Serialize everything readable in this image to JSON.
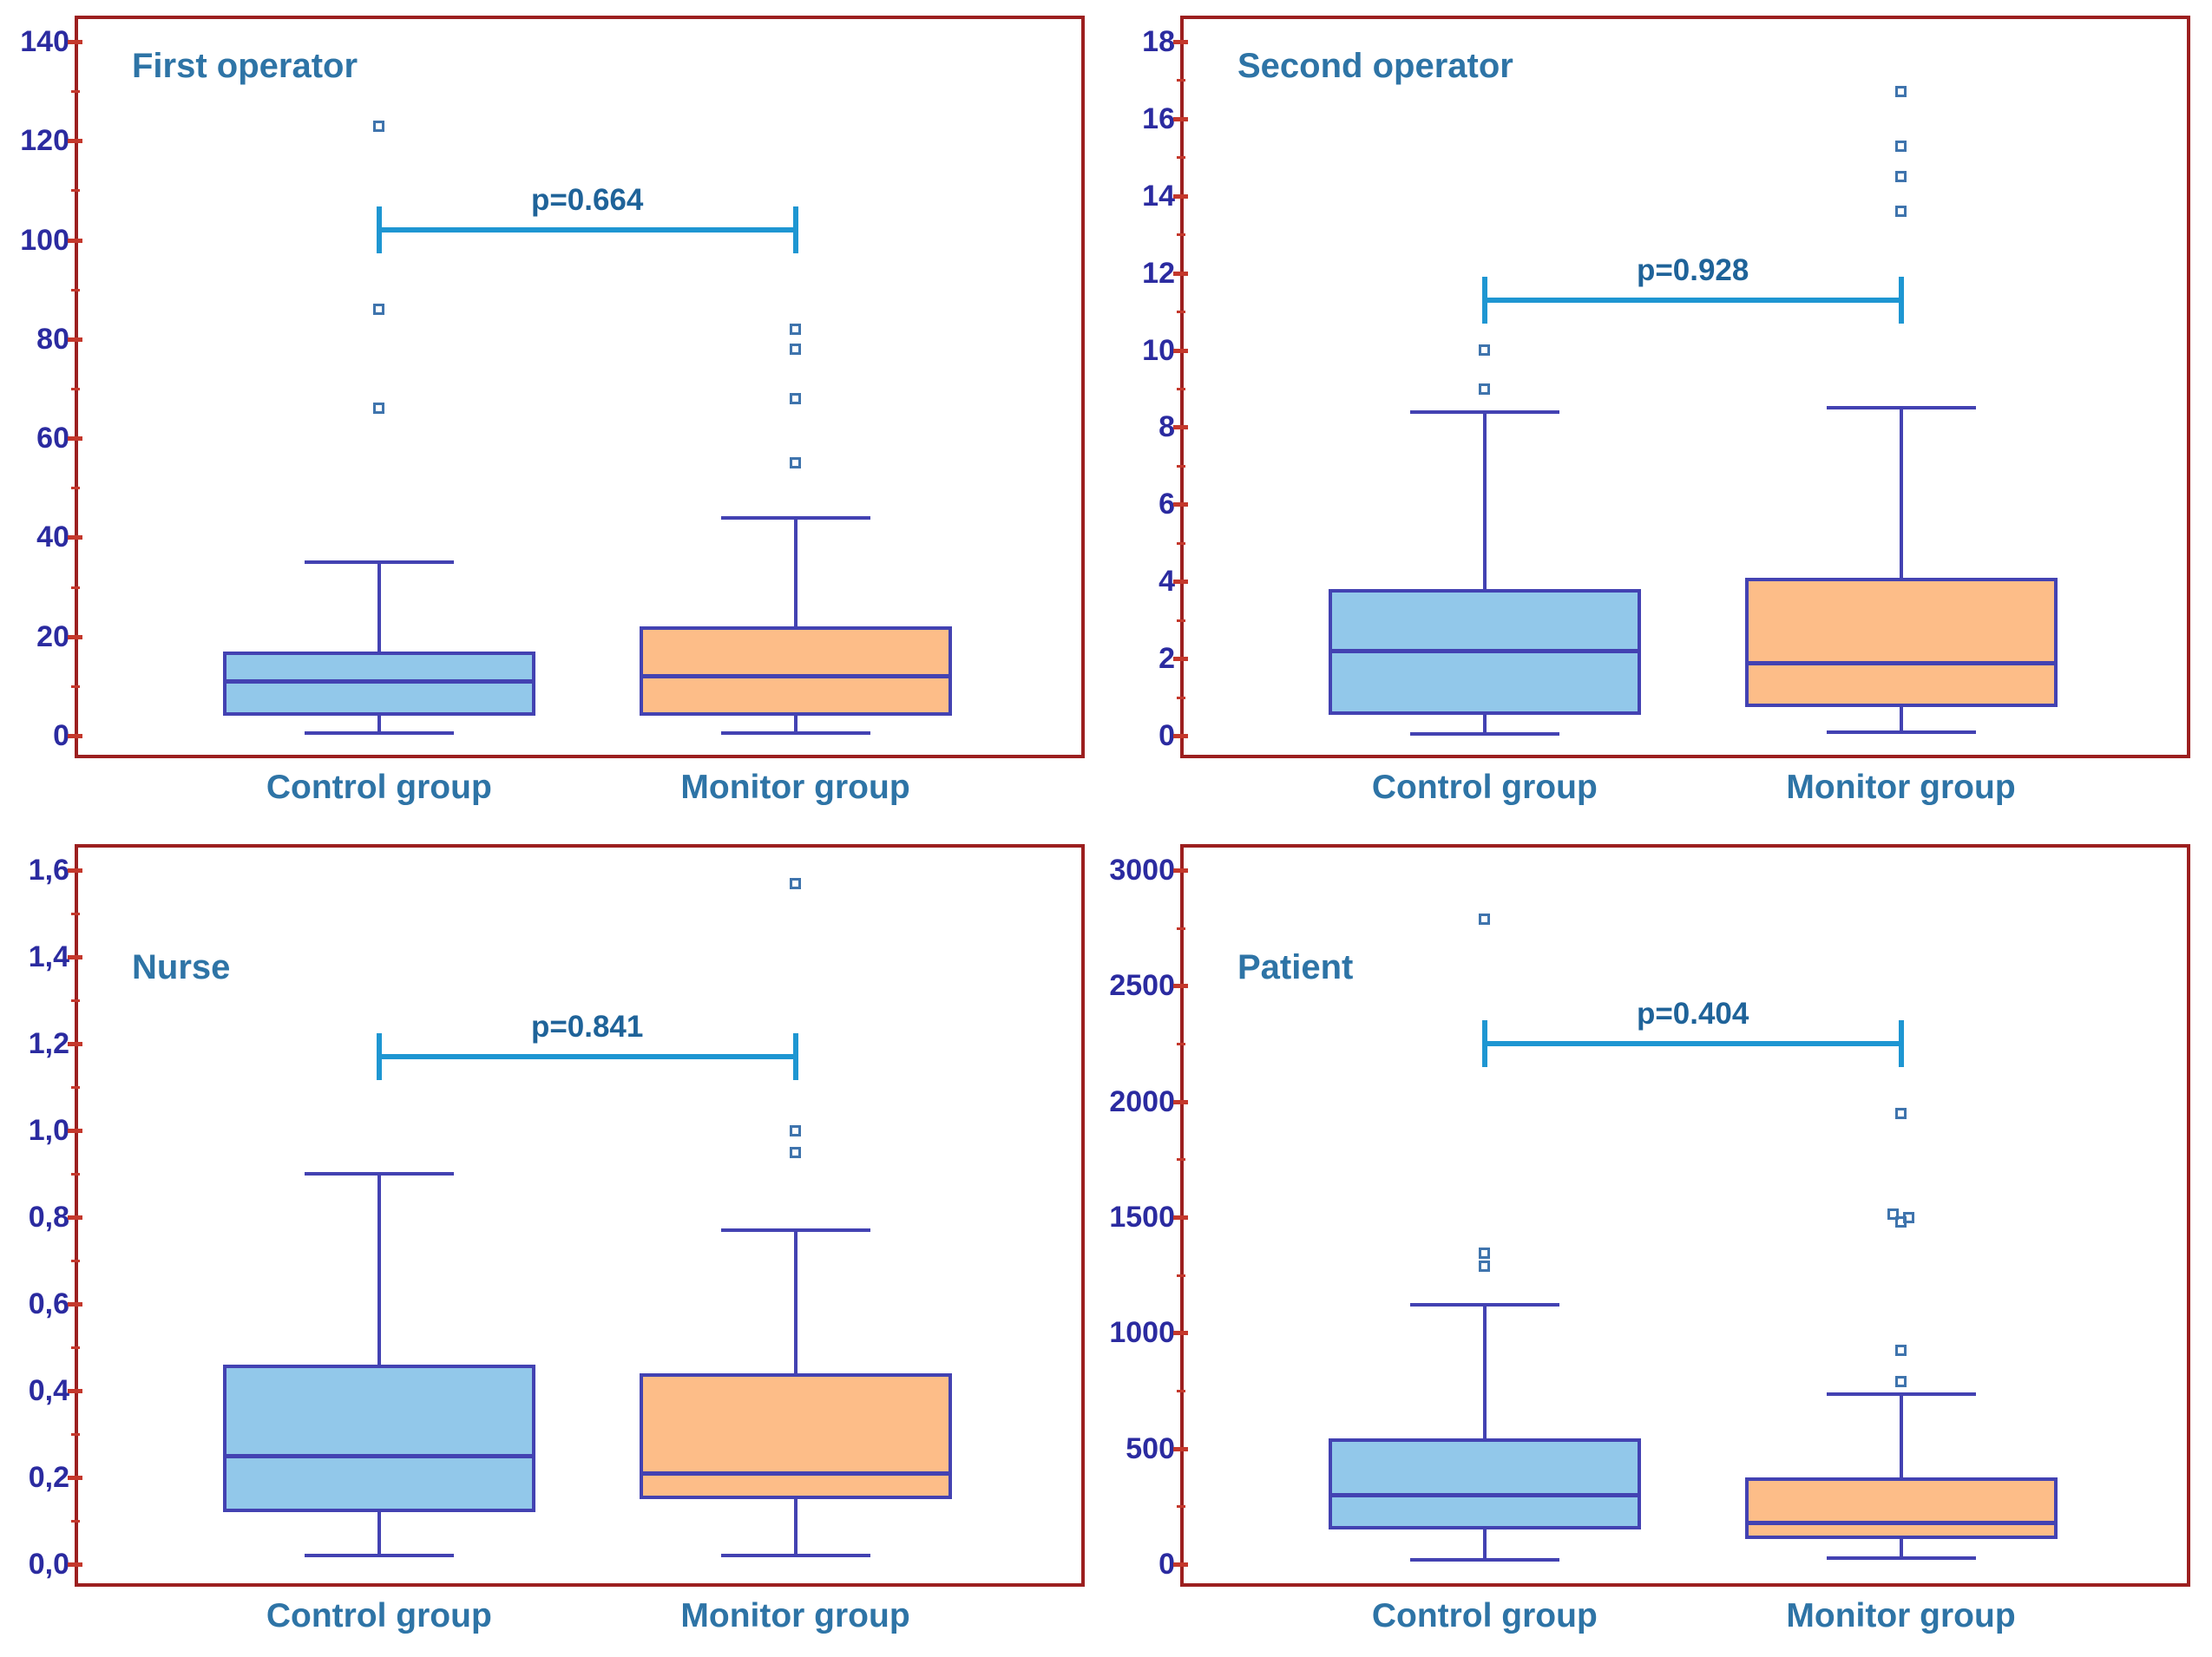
{
  "figure": {
    "type": "boxplot-grid",
    "rows": 2,
    "cols": 2,
    "colors": {
      "panel_border": "#9c1f1f",
      "tick": "#c4382c",
      "y_label": "#2b2ba0",
      "title": "#2e74a6",
      "p_label": "#1f6399",
      "bracket": "#1e96d2",
      "box_edge": "#4342b2",
      "control_fill": "#92c8ea",
      "monitor_fill": "#fdbd88",
      "outlier": "#3f74ad",
      "background": "#ffffff"
    }
  },
  "chart_data": [
    {
      "type": "box",
      "title": "First operator",
      "p_label": "p=0.664",
      "p_bracket_y": 102,
      "ylim": [
        0,
        140
      ],
      "ytick_values": [
        0,
        20,
        40,
        60,
        80,
        100,
        120,
        140
      ],
      "ytick_labels": [
        "0",
        "20",
        "40",
        "60",
        "80",
        "100",
        "120",
        "140"
      ],
      "minor_ticks": true,
      "grid": false,
      "categories": [
        "Control group",
        "Monitor group"
      ],
      "series": [
        {
          "name": "Control group",
          "fill": "control",
          "whisker_low": 0.5,
          "q1": 4,
          "median": 11,
          "q3": 17,
          "whisker_high": 35,
          "outliers": [
            66,
            86,
            123
          ]
        },
        {
          "name": "Monitor group",
          "fill": "monitor",
          "whisker_low": 0.5,
          "q1": 4,
          "median": 12,
          "q3": 22,
          "whisker_high": 44,
          "outliers": [
            55,
            68,
            78,
            82
          ]
        }
      ]
    },
    {
      "type": "box",
      "title": "Second operator",
      "p_label": "p=0.928",
      "p_bracket_y": 11.3,
      "ylim": [
        0,
        18
      ],
      "ytick_values": [
        0,
        2,
        4,
        6,
        8,
        10,
        12,
        14,
        16,
        18
      ],
      "ytick_labels": [
        "0",
        "2",
        "4",
        "6",
        "8",
        "10",
        "12",
        "14",
        "16",
        "18"
      ],
      "minor_ticks": true,
      "grid": false,
      "categories": [
        "Control group",
        "Monitor group"
      ],
      "series": [
        {
          "name": "Control group",
          "fill": "control",
          "whisker_low": 0.05,
          "q1": 0.55,
          "median": 2.2,
          "q3": 3.8,
          "whisker_high": 8.4,
          "outliers": [
            9,
            10
          ]
        },
        {
          "name": "Monitor group",
          "fill": "monitor",
          "whisker_low": 0.1,
          "q1": 0.75,
          "median": 1.9,
          "q3": 4.1,
          "whisker_high": 8.5,
          "outliers": [
            13.6,
            14.5,
            15.3,
            16.7
          ]
        }
      ]
    },
    {
      "type": "box",
      "title": "Nurse",
      "p_label": "p=0.841",
      "p_bracket_y": 1.17,
      "ylim": [
        0,
        1.6
      ],
      "ytick_values": [
        0,
        0.2,
        0.4,
        0.6,
        0.8,
        1.0,
        1.2,
        1.4,
        1.6
      ],
      "ytick_labels": [
        "0,0",
        "0,2",
        "0,4",
        "0,6",
        "0,8",
        "1,0",
        "1,2",
        "1,4",
        "1,6"
      ],
      "minor_ticks": true,
      "grid": false,
      "categories": [
        "Control group",
        "Monitor group"
      ],
      "series": [
        {
          "name": "Control group",
          "fill": "control",
          "whisker_low": 0.02,
          "q1": 0.12,
          "median": 0.25,
          "q3": 0.46,
          "whisker_high": 0.9,
          "outliers": []
        },
        {
          "name": "Monitor group",
          "fill": "monitor",
          "whisker_low": 0.02,
          "q1": 0.15,
          "median": 0.21,
          "q3": 0.44,
          "whisker_high": 0.77,
          "outliers": [
            0.95,
            1.0,
            1.57
          ]
        }
      ]
    },
    {
      "type": "box",
      "title": "Patient",
      "p_label": "p=0.404",
      "p_bracket_y": 2250,
      "ylim": [
        0,
        3000
      ],
      "ytick_values": [
        0,
        500,
        1000,
        1500,
        2000,
        2500,
        3000
      ],
      "ytick_labels": [
        "0",
        "500",
        "1000",
        "1500",
        "2000",
        "2500",
        "3000"
      ],
      "minor_ticks": true,
      "grid": false,
      "categories": [
        "Control group",
        "Monitor group"
      ],
      "series": [
        {
          "name": "Control group",
          "fill": "control",
          "whisker_low": 20,
          "q1": 150,
          "median": 300,
          "q3": 545,
          "whisker_high": 1120,
          "outliers": [
            1290,
            1345,
            2790
          ]
        },
        {
          "name": "Monitor group",
          "fill": "monitor",
          "whisker_low": 25,
          "q1": 110,
          "median": 180,
          "q3": 375,
          "whisker_high": 735,
          "outliers": [
            790,
            925,
            1480,
            1500,
            1515,
            1950
          ]
        }
      ]
    }
  ]
}
